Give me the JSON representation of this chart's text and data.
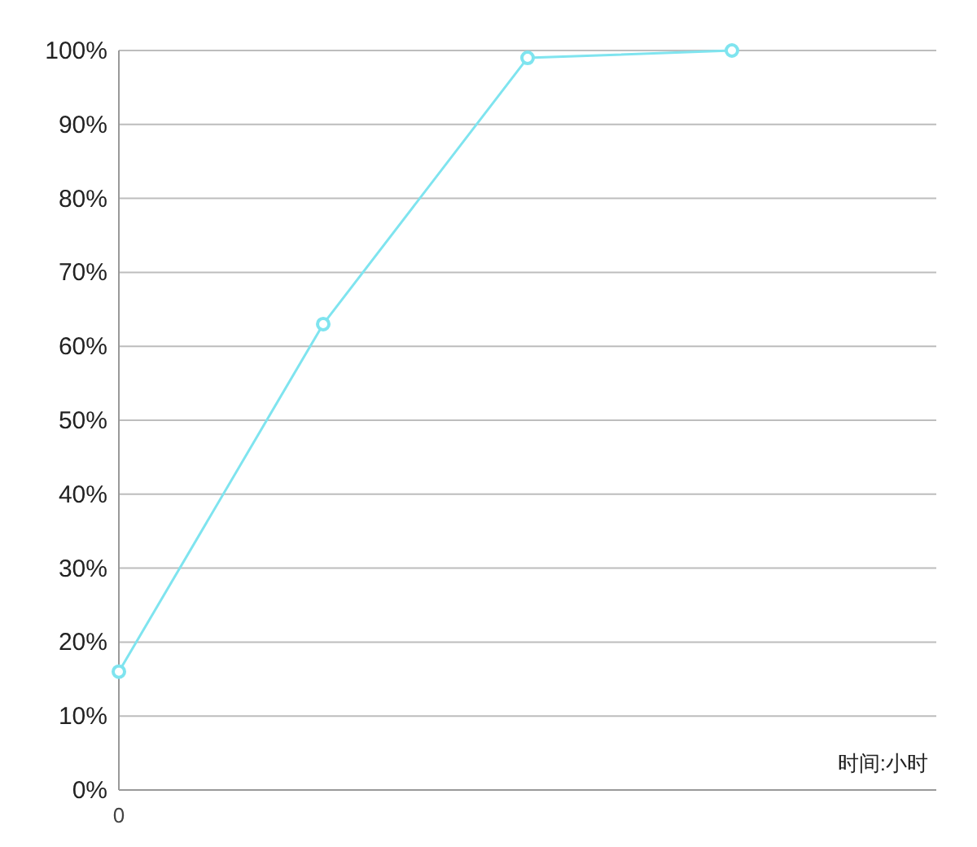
{
  "chart_data": {
    "type": "line",
    "xlabel": "时间:小时",
    "categories": [
      "0",
      null,
      null,
      null,
      null
    ],
    "values": [
      16,
      63,
      99,
      100,
      null
    ],
    "color": "#7fe4ef",
    "marker": "circle",
    "grid": "y",
    "ylim": [
      0,
      100
    ],
    "yticks": [
      {
        "value": 0,
        "label": "0%"
      },
      {
        "value": 10,
        "label": "10%"
      },
      {
        "value": 20,
        "label": "20%"
      },
      {
        "value": 30,
        "label": "30%"
      },
      {
        "value": 40,
        "label": "40%"
      },
      {
        "value": 50,
        "label": "50%"
      },
      {
        "value": 60,
        "label": "60%"
      },
      {
        "value": 70,
        "label": "70%"
      },
      {
        "value": 80,
        "label": "80%"
      },
      {
        "value": 90,
        "label": "90%"
      },
      {
        "value": 100,
        "label": "100%"
      }
    ]
  }
}
